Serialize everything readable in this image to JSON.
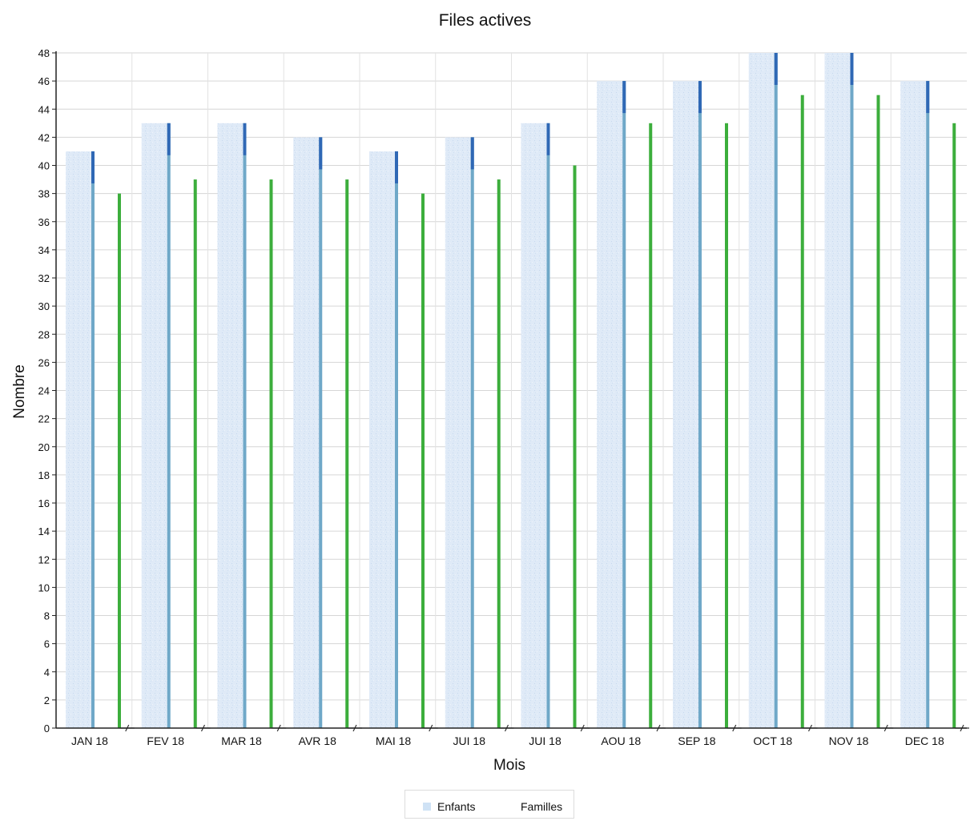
{
  "chart_data": {
    "type": "bar",
    "title": "Files actives",
    "xlabel": "Mois",
    "ylabel": "Nombre",
    "ylim": [
      0,
      48
    ],
    "ytick_step": 2,
    "grid": true,
    "legend_position": "bottom-center",
    "categories": [
      "JAN 18",
      "FEV 18",
      "MAR 18",
      "AVR 18",
      "MAI 18",
      "JUI 18",
      "JUI 18",
      "AOU 18",
      "SEP 18",
      "OCT 18",
      "NOV 18",
      "DEC 18"
    ],
    "series": [
      {
        "name": "Enfants",
        "color": "#cfe2f5",
        "values": [
          41,
          43,
          43,
          42,
          41,
          42,
          43,
          46,
          46,
          48,
          48,
          46
        ]
      },
      {
        "name": "Familles",
        "color": "#3cae3c",
        "values": [
          38,
          39,
          39,
          39,
          38,
          39,
          40,
          43,
          43,
          45,
          45,
          43
        ]
      }
    ]
  }
}
